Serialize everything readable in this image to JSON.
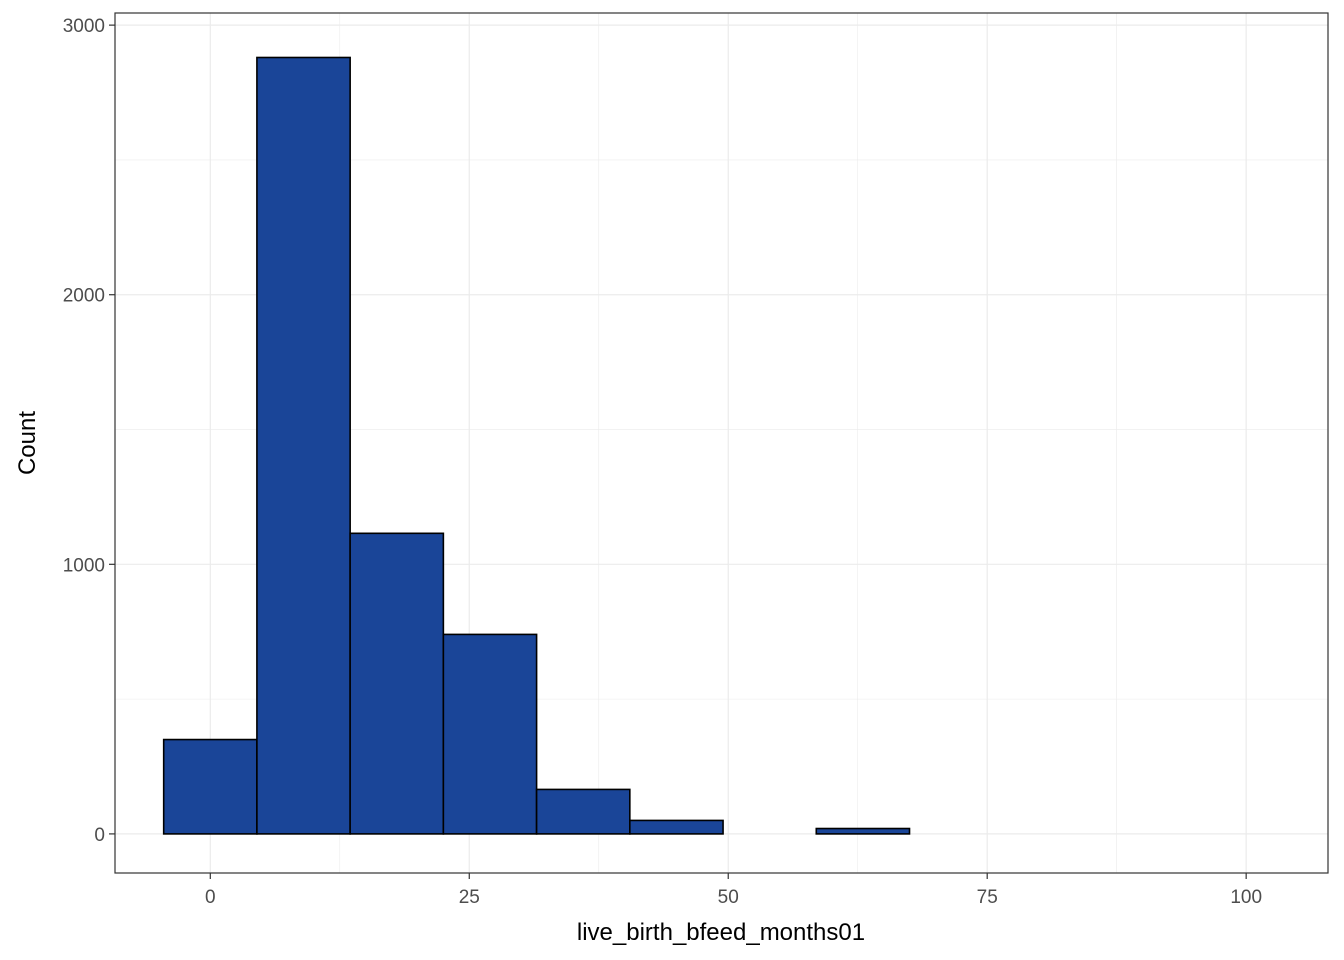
{
  "chart_data": {
    "type": "bar",
    "subtype": "histogram",
    "xlabel": "live_birth_bfeed_months01",
    "ylabel": "Count",
    "xlim": [
      -9.2,
      107.9
    ],
    "ylim": [
      -145,
      3045
    ],
    "x_ticks": [
      0,
      25,
      50,
      75,
      100
    ],
    "y_ticks": [
      0,
      1000,
      2000,
      3000
    ],
    "bin_width": 9,
    "bins": [
      {
        "x0": -4.5,
        "x1": 4.5,
        "count": 350
      },
      {
        "x0": 4.5,
        "x1": 13.5,
        "count": 2880
      },
      {
        "x0": 13.5,
        "x1": 22.5,
        "count": 1115
      },
      {
        "x0": 22.5,
        "x1": 31.5,
        "count": 740
      },
      {
        "x0": 31.5,
        "x1": 40.5,
        "count": 165
      },
      {
        "x0": 40.5,
        "x1": 49.5,
        "count": 50
      },
      {
        "x0": 49.5,
        "x1": 58.5,
        "count": 0
      },
      {
        "x0": 58.5,
        "x1": 67.5,
        "count": 20
      },
      {
        "x0": 67.5,
        "x1": 76.5,
        "count": 0
      },
      {
        "x0": 76.5,
        "x1": 85.5,
        "count": 0
      },
      {
        "x0": 85.5,
        "x1": 94.5,
        "count": 0
      },
      {
        "x0": 94.5,
        "x1": 103.5,
        "count": 0
      }
    ],
    "grid": true,
    "legend": "none",
    "colors": {
      "bar_fill": "#1a4598",
      "bar_stroke": "#000000",
      "grid": "#ebebeb",
      "panel_border": "#333333"
    }
  }
}
